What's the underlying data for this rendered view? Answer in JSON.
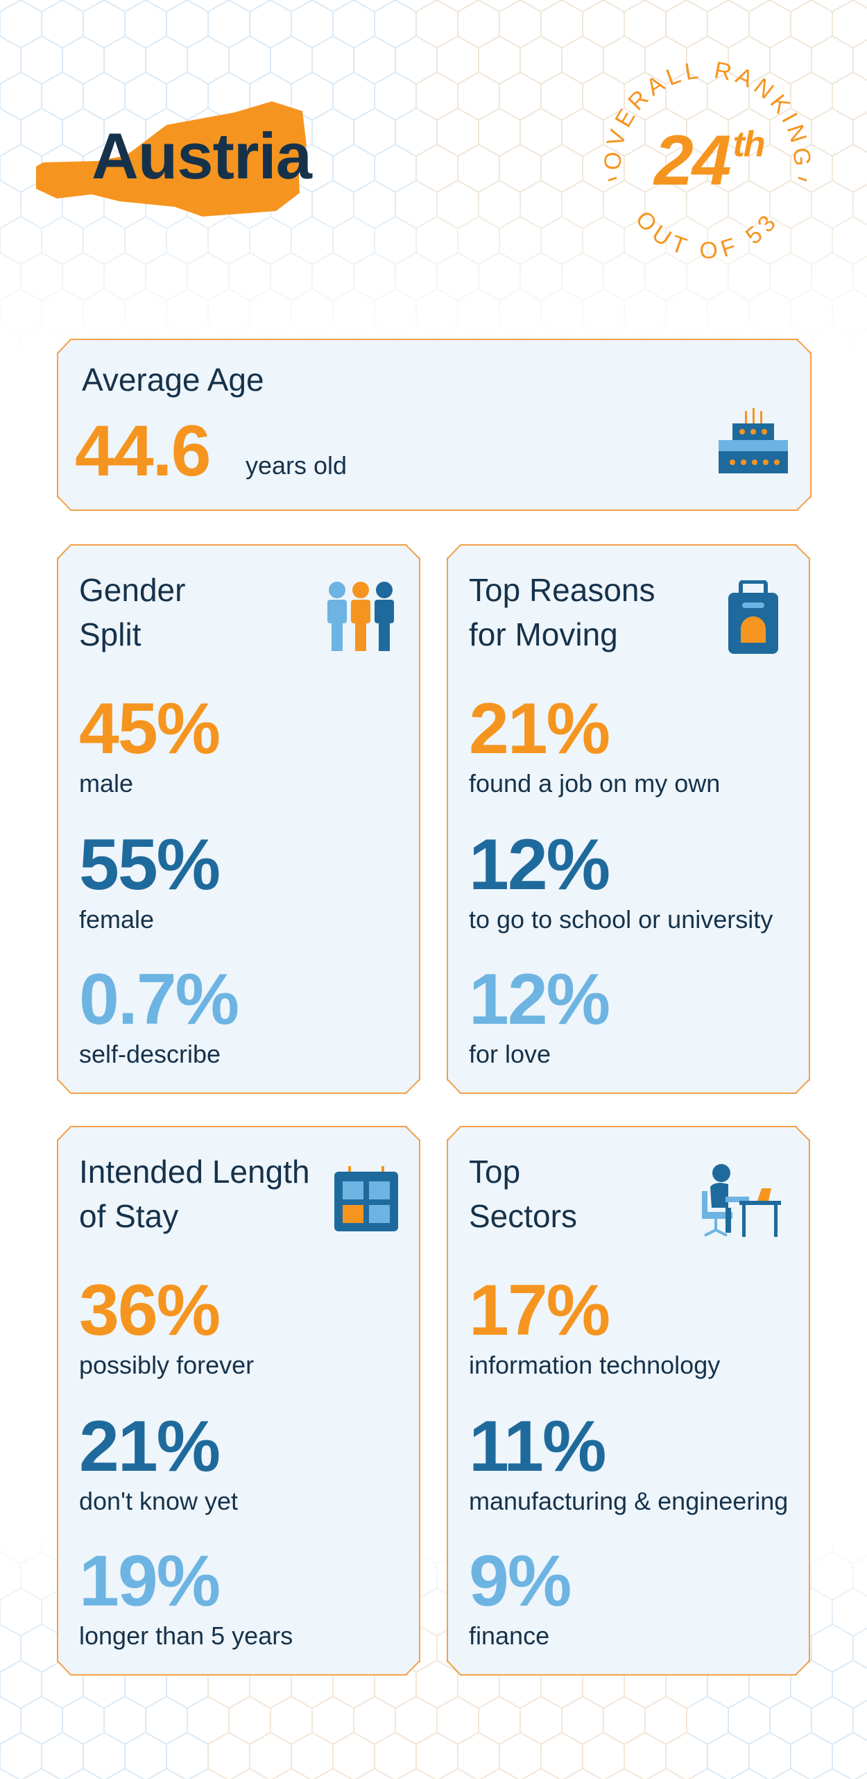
{
  "header": {
    "country": "Austria",
    "ranking_label_top": "OVERALL RANKING",
    "ranking_label_bottom": "OUT OF 53",
    "rank": "24",
    "rank_suffix": "th"
  },
  "average_age": {
    "title": "Average Age",
    "value": "44.6",
    "unit": "years old",
    "icon": "birthday-cake-icon"
  },
  "gender_split": {
    "title": "Gender Split",
    "icon": "people-icon",
    "stats": [
      {
        "value": "45%",
        "label": "male"
      },
      {
        "value": "55%",
        "label": "female"
      },
      {
        "value": "0.7%",
        "label": "self-describe"
      }
    ]
  },
  "reasons": {
    "title": "Top Reasons for Moving",
    "icon": "suitcase-icon",
    "stats": [
      {
        "value": "21%",
        "label": "found a job on my own"
      },
      {
        "value": "12%",
        "label": "to go to school or university"
      },
      {
        "value": "12%",
        "label": "for love"
      }
    ]
  },
  "length_of_stay": {
    "title": "Intended Length of Stay",
    "icon": "calendar-icon",
    "stats": [
      {
        "value": "36%",
        "label": "possibly forever"
      },
      {
        "value": "21%",
        "label": "don't know yet"
      },
      {
        "value": "19%",
        "label": "longer than 5 years"
      }
    ]
  },
  "sectors": {
    "title": "Top Sectors",
    "icon": "person-at-desk-icon",
    "stats": [
      {
        "value": "17%",
        "label": "information technology"
      },
      {
        "value": "11%",
        "label": "manufacturing & engineering"
      },
      {
        "value": "9%",
        "label": "finance"
      }
    ]
  },
  "colors": {
    "orange": "#f5951f",
    "dark_navy": "#16324a",
    "mid_blue": "#1f6a9c",
    "light_blue": "#6db4e2",
    "card_bg": "#eef5fb"
  }
}
